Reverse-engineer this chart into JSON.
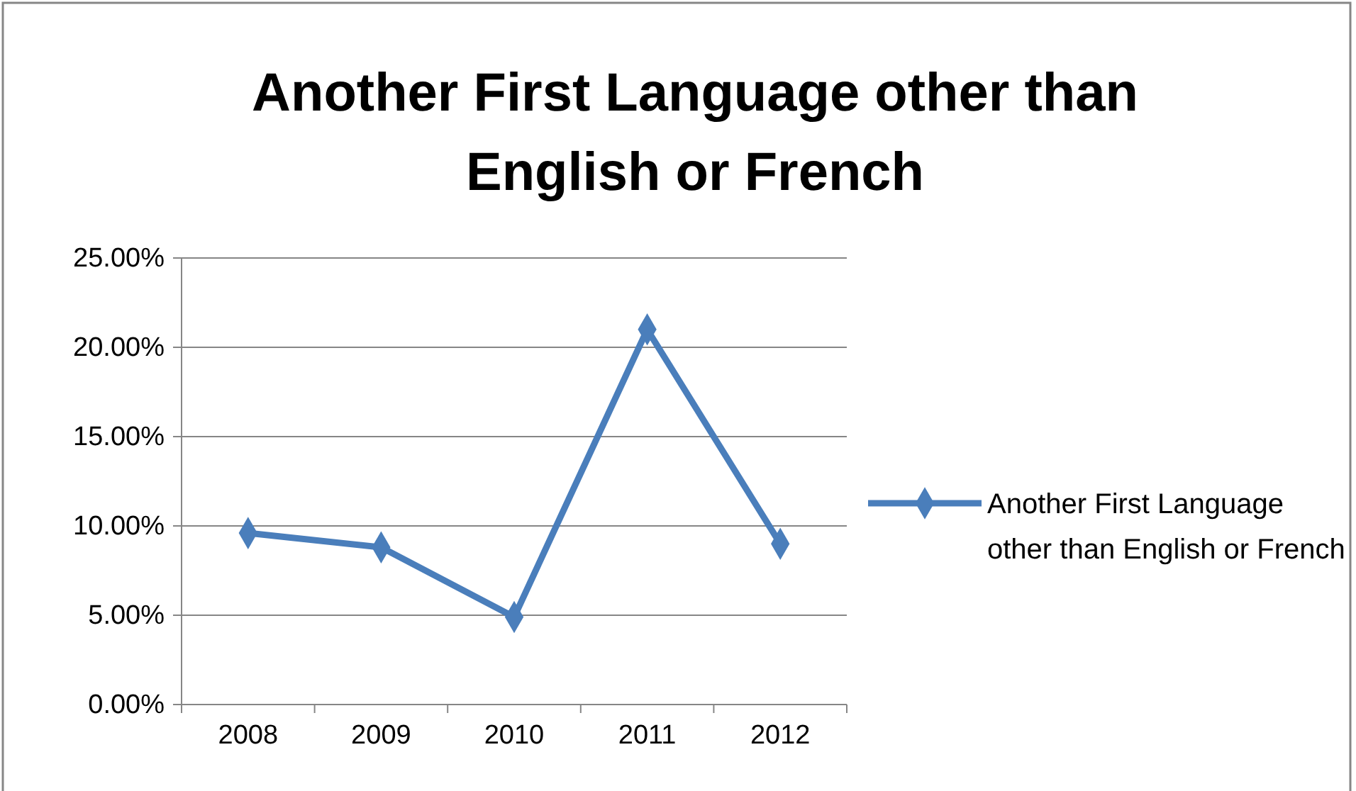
{
  "chart_data": {
    "type": "line",
    "title": "Another First Language other than English or French",
    "categories": [
      "2008",
      "2009",
      "2010",
      "2011",
      "2012"
    ],
    "series": [
      {
        "name": "Another First Language other than English or French",
        "color": "#4a7ebb",
        "values": [
          9.6,
          8.8,
          4.9,
          21.0,
          9.0
        ]
      }
    ],
    "ylim": [
      0,
      25
    ],
    "yticks": [
      {
        "value": 0,
        "label": "0.00%"
      },
      {
        "value": 5,
        "label": "5.00%"
      },
      {
        "value": 10,
        "label": "10.00%"
      },
      {
        "value": 15,
        "label": "15.00%"
      },
      {
        "value": 20,
        "label": "20.00%"
      },
      {
        "value": 25,
        "label": "25.00%"
      }
    ],
    "grid": "y",
    "legend": "right",
    "marker": "diamond",
    "line_style": "solid"
  }
}
